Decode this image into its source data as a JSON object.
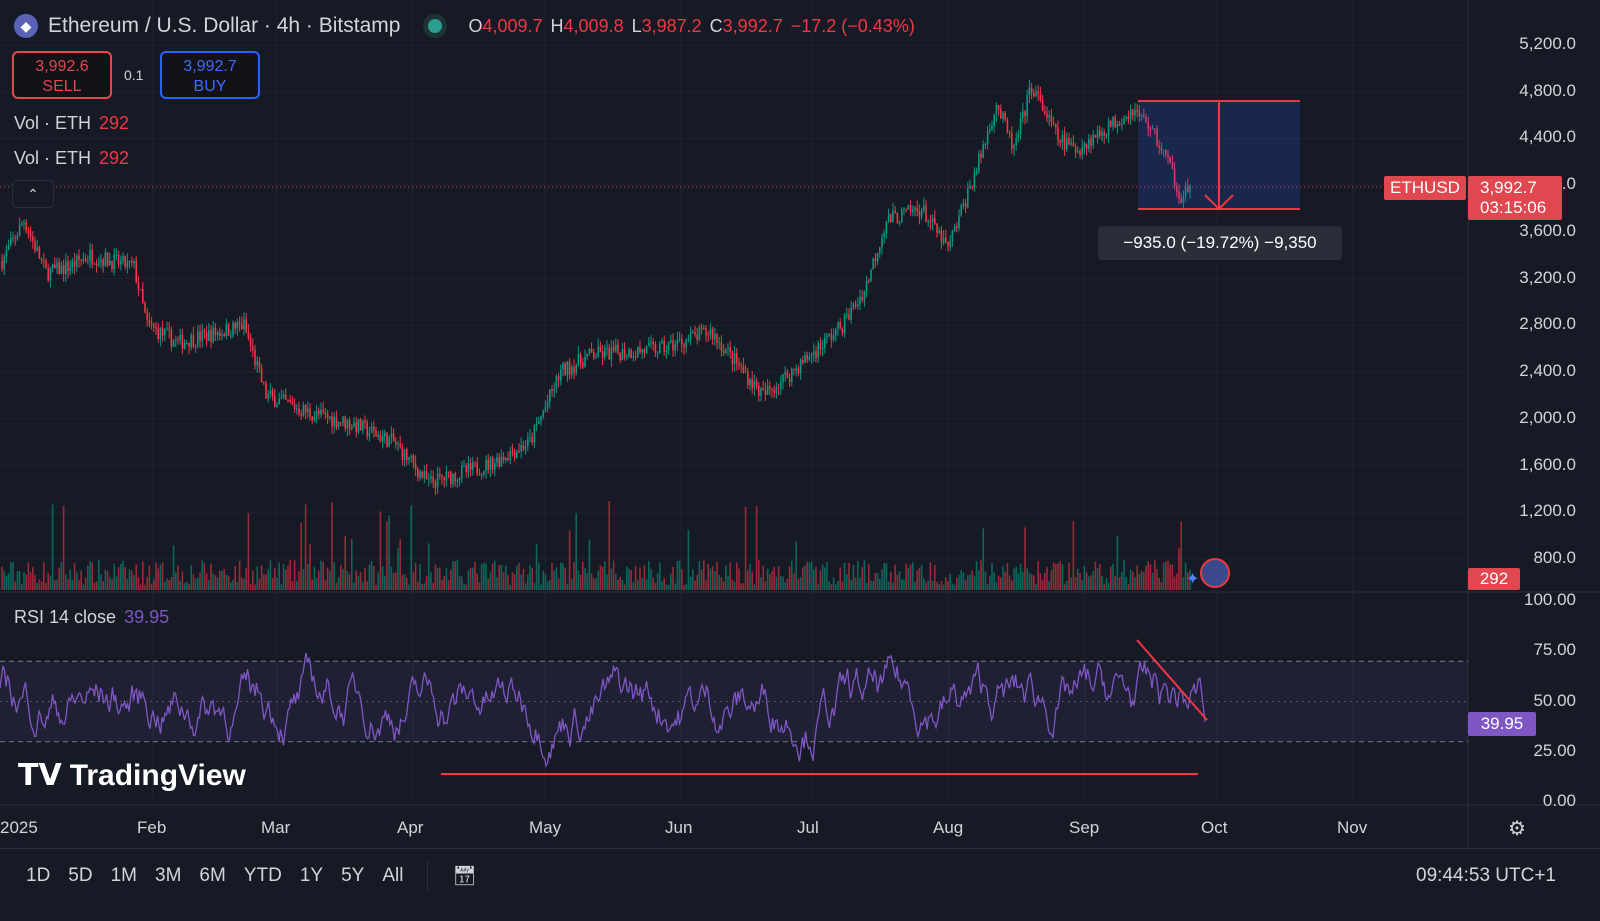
{
  "header": {
    "symbol": "Ethereum / U.S. Dollar · 4h · Bitstamp",
    "o_label": "O",
    "o": "4,009.7",
    "h_label": "H",
    "h": "4,009.8",
    "l_label": "L",
    "l": "3,987.2",
    "c_label": "C",
    "c": "3,992.7",
    "change": "−17.2 (−0.43%)"
  },
  "trade": {
    "sell_price": "3,992.6",
    "sell_label": "SELL",
    "qty": "0.1",
    "buy_price": "3,992.7",
    "buy_label": "BUY"
  },
  "volume_legend": [
    {
      "label": "Vol · ETH",
      "value": "292"
    },
    {
      "label": "Vol · ETH",
      "value": "292"
    }
  ],
  "price_tag": {
    "symbol": "ETHUSD",
    "price": "3,992.7",
    "countdown": "03:15:06"
  },
  "volume_tag": "292",
  "measure": {
    "text": "−935.0 (−19.72%) −9,350"
  },
  "rsi": {
    "label": "RSI 14 close",
    "value": "39.95",
    "axis": [
      "100.00",
      "75.00",
      "50.00",
      "25.00",
      "0.00"
    ]
  },
  "brand": "TradingView",
  "toolbar": {
    "ranges": [
      "1D",
      "5D",
      "1M",
      "3M",
      "6M",
      "YTD",
      "1Y",
      "5Y",
      "All"
    ],
    "clock": "09:44:53 UTC+1"
  },
  "colors": {
    "up": "#089981",
    "down": "#f23645",
    "rsi": "#7e57c2",
    "bg": "#161a25"
  },
  "chart_data": {
    "type": "candlestick",
    "price_axis": [
      "5,200.0",
      "4,800.0",
      "4,400.0",
      "4,000.0",
      "3,600.0",
      "3,200.0",
      "2,800.0",
      "2,400.0",
      "2,000.0",
      "1,600.0",
      "1,200.0",
      "800.0"
    ],
    "ylim": [
      800,
      5200
    ],
    "x_labels": [
      "2025",
      "Feb",
      "Mar",
      "Apr",
      "May",
      "Jun",
      "Jul",
      "Aug",
      "Sep",
      "Oct",
      "Nov"
    ],
    "price_path": [
      [
        0,
        3350
      ],
      [
        5,
        3700
      ],
      [
        10,
        3250
      ],
      [
        15,
        3300
      ],
      [
        20,
        3400
      ],
      [
        30,
        3300
      ],
      [
        33,
        2800
      ],
      [
        40,
        2650
      ],
      [
        55,
        2800
      ],
      [
        60,
        2200
      ],
      [
        70,
        2050
      ],
      [
        80,
        1950
      ],
      [
        89,
        1800
      ],
      [
        97,
        1450
      ],
      [
        110,
        1600
      ],
      [
        120,
        1800
      ],
      [
        127,
        2400
      ],
      [
        134,
        2550
      ],
      [
        150,
        2600
      ],
      [
        161,
        2750
      ],
      [
        173,
        2200
      ],
      [
        181,
        2450
      ],
      [
        191,
        2800
      ],
      [
        196,
        3100
      ],
      [
        201,
        3700
      ],
      [
        209,
        3800
      ],
      [
        215,
        3450
      ],
      [
        222,
        4200
      ],
      [
        226,
        4700
      ],
      [
        230,
        4300
      ],
      [
        234,
        4850
      ],
      [
        240,
        4400
      ],
      [
        244,
        4300
      ],
      [
        257,
        4650
      ],
      [
        261,
        4500
      ],
      [
        265,
        4200
      ],
      [
        268,
        3900
      ],
      [
        270,
        3992
      ]
    ],
    "rsi_ylim": [
      0,
      100
    ],
    "rsi_bands": [
      30,
      70
    ]
  }
}
